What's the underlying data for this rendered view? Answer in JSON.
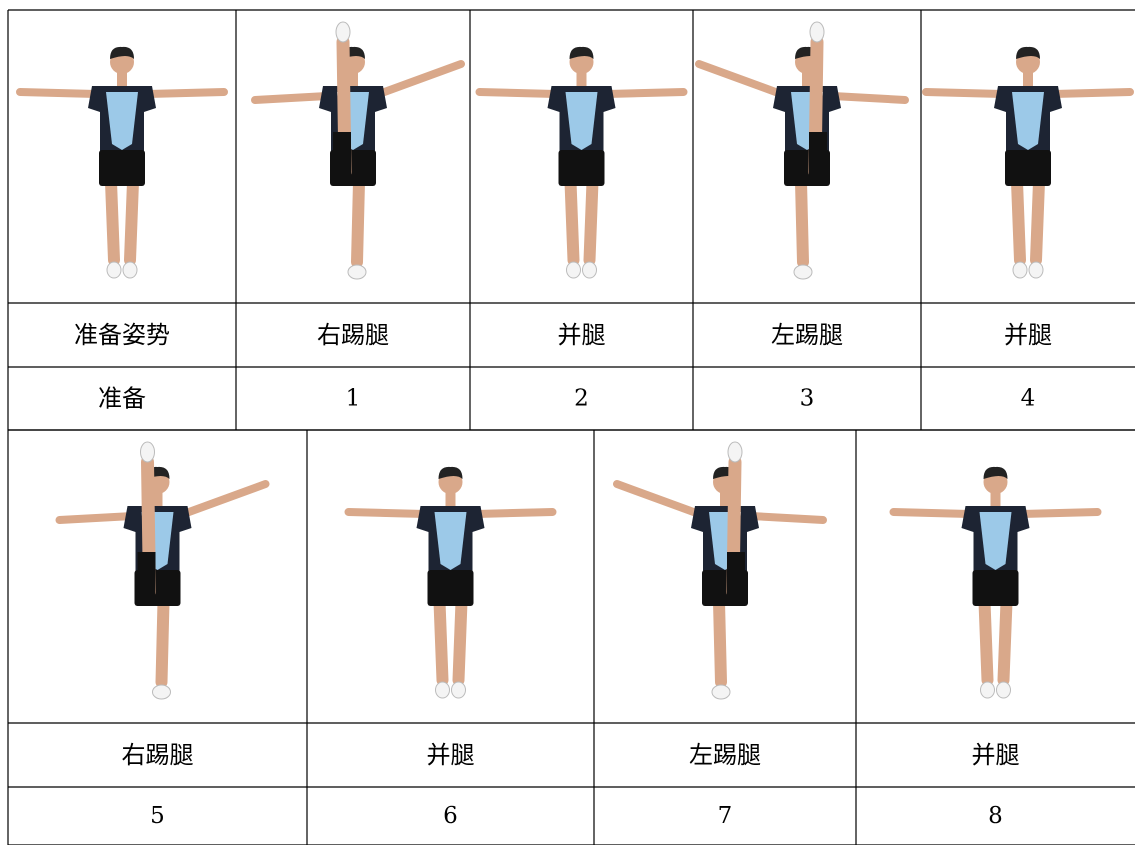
{
  "table1": {
    "labels": [
      "准备姿势",
      "右踢腿",
      "并腿",
      "左踢腿",
      "并腿"
    ],
    "counts": [
      "准备",
      "1",
      "2",
      "3",
      "4"
    ]
  },
  "table2": {
    "labels": [
      "右踢腿",
      "并腿",
      "左踢腿",
      "并腿"
    ],
    "counts": [
      "5",
      "6",
      "7",
      "8"
    ]
  }
}
